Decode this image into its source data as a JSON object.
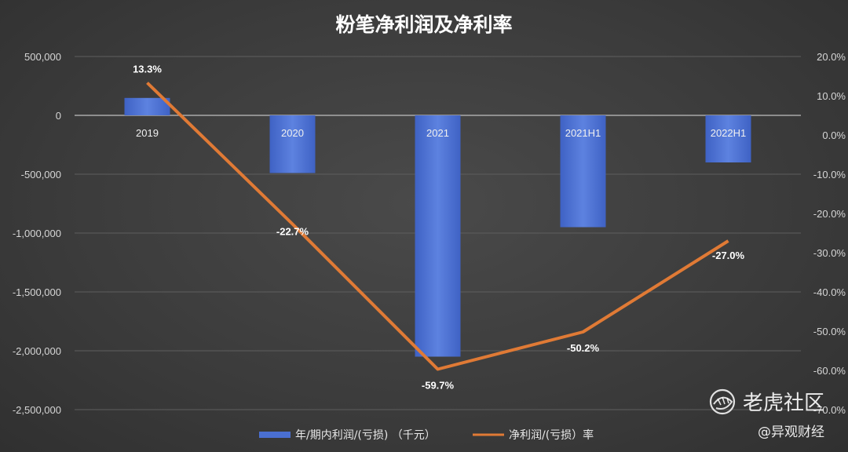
{
  "chart_data": {
    "type": "bar",
    "title": "粉笔净利润及净利率",
    "categories": [
      "2019",
      "2020",
      "2021",
      "2021H1",
      "2022H1"
    ],
    "series": [
      {
        "name": "年/期内利润/(亏损) （千元）",
        "type": "bar",
        "axis": "left",
        "color": "#4a6fd1",
        "values": [
          148000,
          -490000,
          -2050000,
          -950000,
          -400000
        ]
      },
      {
        "name": "净利润/(亏损）率",
        "type": "line",
        "axis": "right",
        "color": "#e07a35",
        "values": [
          13.3,
          -22.7,
          -59.7,
          -50.2,
          -27.0
        ],
        "labels": [
          "13.3%",
          "-22.7%",
          "-59.7%",
          "-50.2%",
          "-27.0%"
        ]
      }
    ],
    "y_left": {
      "ylim": [
        -2500000,
        500000
      ],
      "ticks": [
        500000,
        0,
        -500000,
        -1000000,
        -1500000,
        -2000000,
        -2500000
      ],
      "tick_labels": [
        "500,000",
        "0",
        "-500,000",
        "-1,000,000",
        "-1,500,000",
        "-2,000,000",
        "-2,500,000"
      ]
    },
    "y_right": {
      "ylim": [
        -70,
        20
      ],
      "ticks": [
        20,
        10,
        0,
        -10,
        -20,
        -30,
        -40,
        -50,
        -60,
        -70
      ],
      "tick_labels": [
        "20.0%",
        "10.0%",
        "0.0%",
        "-10.0%",
        "-20.0%",
        "-30.0%",
        "-40.0%",
        "-50.0%",
        "-60.0%",
        "-70.0%"
      ]
    },
    "grid": true,
    "legend_position": "bottom"
  },
  "watermarks": {
    "primary": "老虎社区",
    "secondary": "@异观财经"
  }
}
